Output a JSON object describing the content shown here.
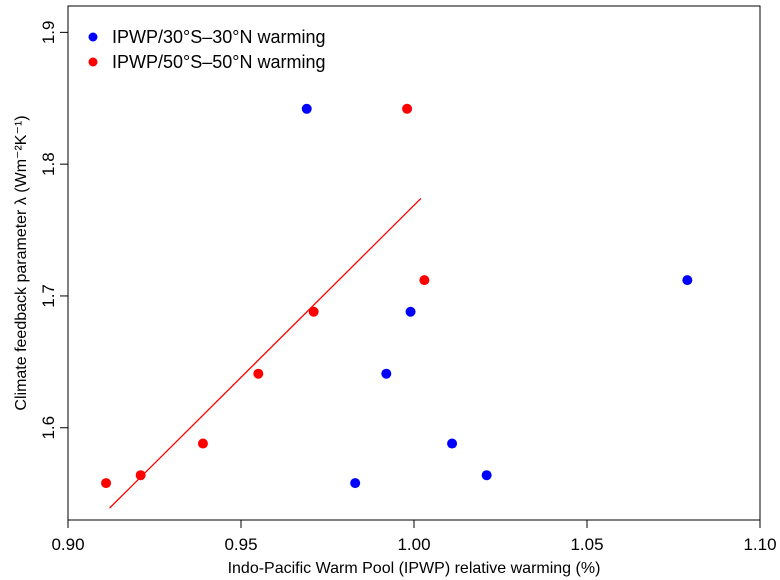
{
  "chart_data": {
    "type": "scatter",
    "title": "",
    "xlabel": "Indo-Pacific Warm Pool (IPWP) relative warming (%)",
    "ylabel": "Climate feedback parameter λ (Wm⁻²K⁻¹)",
    "xlim": [
      0.9,
      1.1
    ],
    "ylim": [
      1.53,
      1.92
    ],
    "xticks": [
      0.9,
      0.95,
      1.0,
      1.05,
      1.1
    ],
    "xtick_labels": [
      "0.90",
      "0.95",
      "1.00",
      "1.05",
      "1.10"
    ],
    "yticks": [
      1.6,
      1.7,
      1.8,
      1.9
    ],
    "ytick_labels": [
      "1.6",
      "1.7",
      "1.8",
      "1.9"
    ],
    "grid": false,
    "legend_position": "top-left",
    "series": [
      {
        "name": "IPWP/30°S–30°N warming",
        "color": "#0000ff",
        "points": [
          {
            "x": 0.969,
            "y": 1.842
          },
          {
            "x": 1.079,
            "y": 1.712
          },
          {
            "x": 0.999,
            "y": 1.688
          },
          {
            "x": 0.992,
            "y": 1.641
          },
          {
            "x": 1.011,
            "y": 1.588
          },
          {
            "x": 1.021,
            "y": 1.564
          },
          {
            "x": 0.983,
            "y": 1.558
          }
        ]
      },
      {
        "name": "IPWP/50°S–50°N warming",
        "color": "#ff0000",
        "points": [
          {
            "x": 0.998,
            "y": 1.842
          },
          {
            "x": 1.003,
            "y": 1.712
          },
          {
            "x": 0.971,
            "y": 1.688
          },
          {
            "x": 0.955,
            "y": 1.641
          },
          {
            "x": 0.939,
            "y": 1.588
          },
          {
            "x": 0.921,
            "y": 1.564
          },
          {
            "x": 0.911,
            "y": 1.558
          }
        ]
      }
    ],
    "fit_line": {
      "color": "#ff0000",
      "x": [
        0.912,
        1.002
      ],
      "y": [
        1.539,
        1.774
      ]
    }
  }
}
